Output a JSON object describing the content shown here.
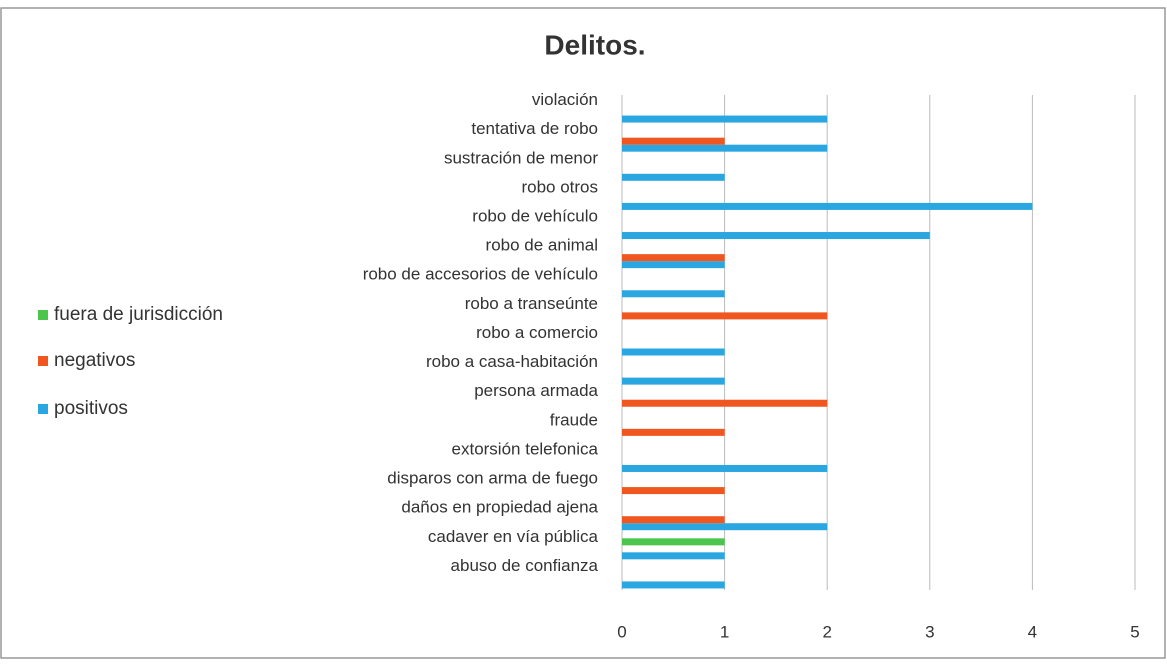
{
  "chart_data": {
    "type": "bar",
    "orientation": "horizontal",
    "title": "Delitos.",
    "categories": [
      "abuso de confianza",
      "cadaver en vía pública",
      "daños en propiedad ajena",
      "disparos con arma de fuego",
      "extorsión telefonica",
      "fraude",
      "persona armada",
      "robo a casa-habitación",
      "robo a comercio",
      "robo a transeúnte",
      "robo de accesorios de vehículo",
      "robo de animal",
      "robo de vehículo",
      "robo otros",
      "sustración de menor",
      "tentativa de robo",
      "violación"
    ],
    "series": [
      {
        "name": "positivos",
        "color": "#2aa6e0",
        "values": [
          1,
          1,
          2,
          0,
          2,
          0,
          0,
          1,
          1,
          0,
          1,
          1,
          3,
          4,
          1,
          2,
          2
        ]
      },
      {
        "name": "negativos",
        "color": "#f0561f",
        "values": [
          0,
          0,
          1,
          1,
          0,
          1,
          2,
          0,
          0,
          2,
          0,
          1,
          0,
          0,
          0,
          1,
          0
        ]
      },
      {
        "name": "fuera de jurisdicción",
        "color": "#4cc54c",
        "values": [
          0,
          1,
          0,
          0,
          0,
          0,
          0,
          0,
          0,
          0,
          0,
          0,
          0,
          0,
          0,
          0,
          0
        ]
      }
    ],
    "xlim": [
      0,
      5
    ],
    "xticks": [
      0,
      1,
      2,
      3,
      4,
      5
    ],
    "grid": true,
    "legend": "left"
  }
}
